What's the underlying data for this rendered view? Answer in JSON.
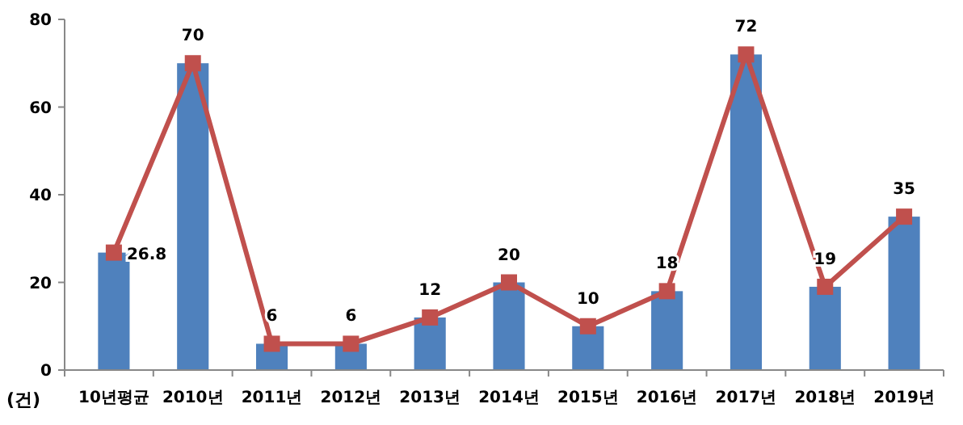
{
  "chart_data": {
    "type": "bar",
    "ylabel": "(건)",
    "categories": [
      "10년평균",
      "2010년",
      "2011년",
      "2012년",
      "2013년",
      "2014년",
      "2015년",
      "2016년",
      "2017년",
      "2018년",
      "2019년"
    ],
    "series": [
      {
        "color": "#4f81bd",
        "values": [
          26.8,
          70,
          6,
          6,
          12,
          20,
          10,
          18,
          72,
          19,
          35
        ]
      },
      {
        "type": "line",
        "color": "#c0504d",
        "values": [
          26.8,
          70,
          6,
          6,
          12,
          20,
          10,
          18,
          72,
          19,
          35
        ],
        "marker": "square",
        "data_labels": true
      }
    ],
    "ylim": [
      0,
      80
    ],
    "yticks": [
      0,
      20,
      40,
      60,
      80
    ],
    "grid": false
  }
}
